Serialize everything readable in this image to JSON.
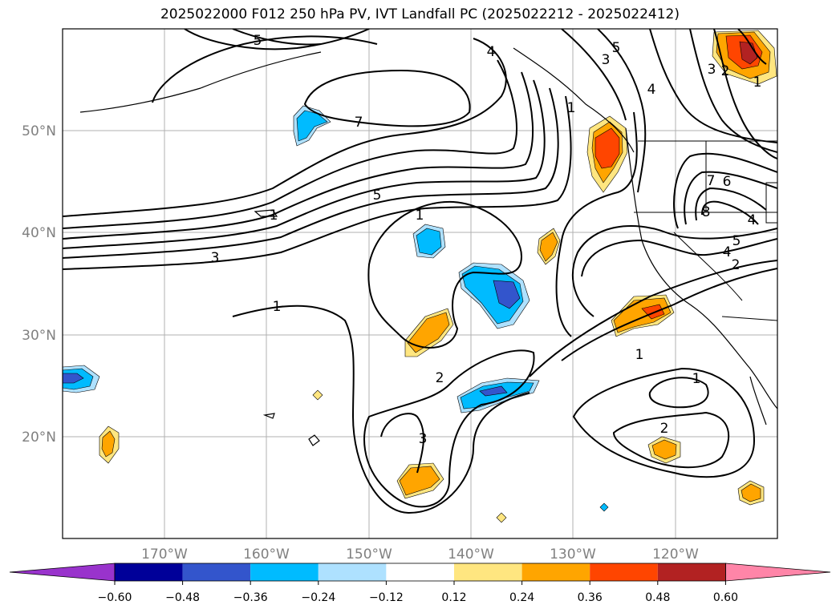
{
  "title": "2025022000 F012 250 hPa PV, IVT Landfall PC (2025022212 - 2025022412)",
  "map": {
    "lon_range": [
      -180,
      -110
    ],
    "lat_range": [
      10,
      60
    ],
    "lat_labels": [
      "50°N",
      "40°N",
      "30°N",
      "20°N"
    ],
    "lon_labels": [
      "170°W",
      "160°W",
      "150°W",
      "140°W",
      "130°W",
      "120°W"
    ],
    "contour_labels": [
      "7",
      "5",
      "3",
      "1",
      "1",
      "2",
      "3",
      "4",
      "3",
      "4",
      "5",
      "1",
      "1",
      "2",
      "1",
      "4",
      "5",
      "6",
      "7",
      "8",
      "4",
      "2",
      "1",
      "3",
      "2",
      "1",
      "5"
    ]
  },
  "colorbar": {
    "colors": [
      "#9933cc",
      "#000099",
      "#3355cc",
      "#00bbff",
      "#aee1ff",
      "#ffffff",
      "#ffe680",
      "#ffa500",
      "#ff4500",
      "#b22222",
      "#ff85a8"
    ],
    "tick_labels": [
      "−0.60",
      "−0.48",
      "−0.36",
      "−0.24",
      "−0.12",
      "0.12",
      "0.24",
      "0.36",
      "0.48",
      "0.60"
    ]
  }
}
